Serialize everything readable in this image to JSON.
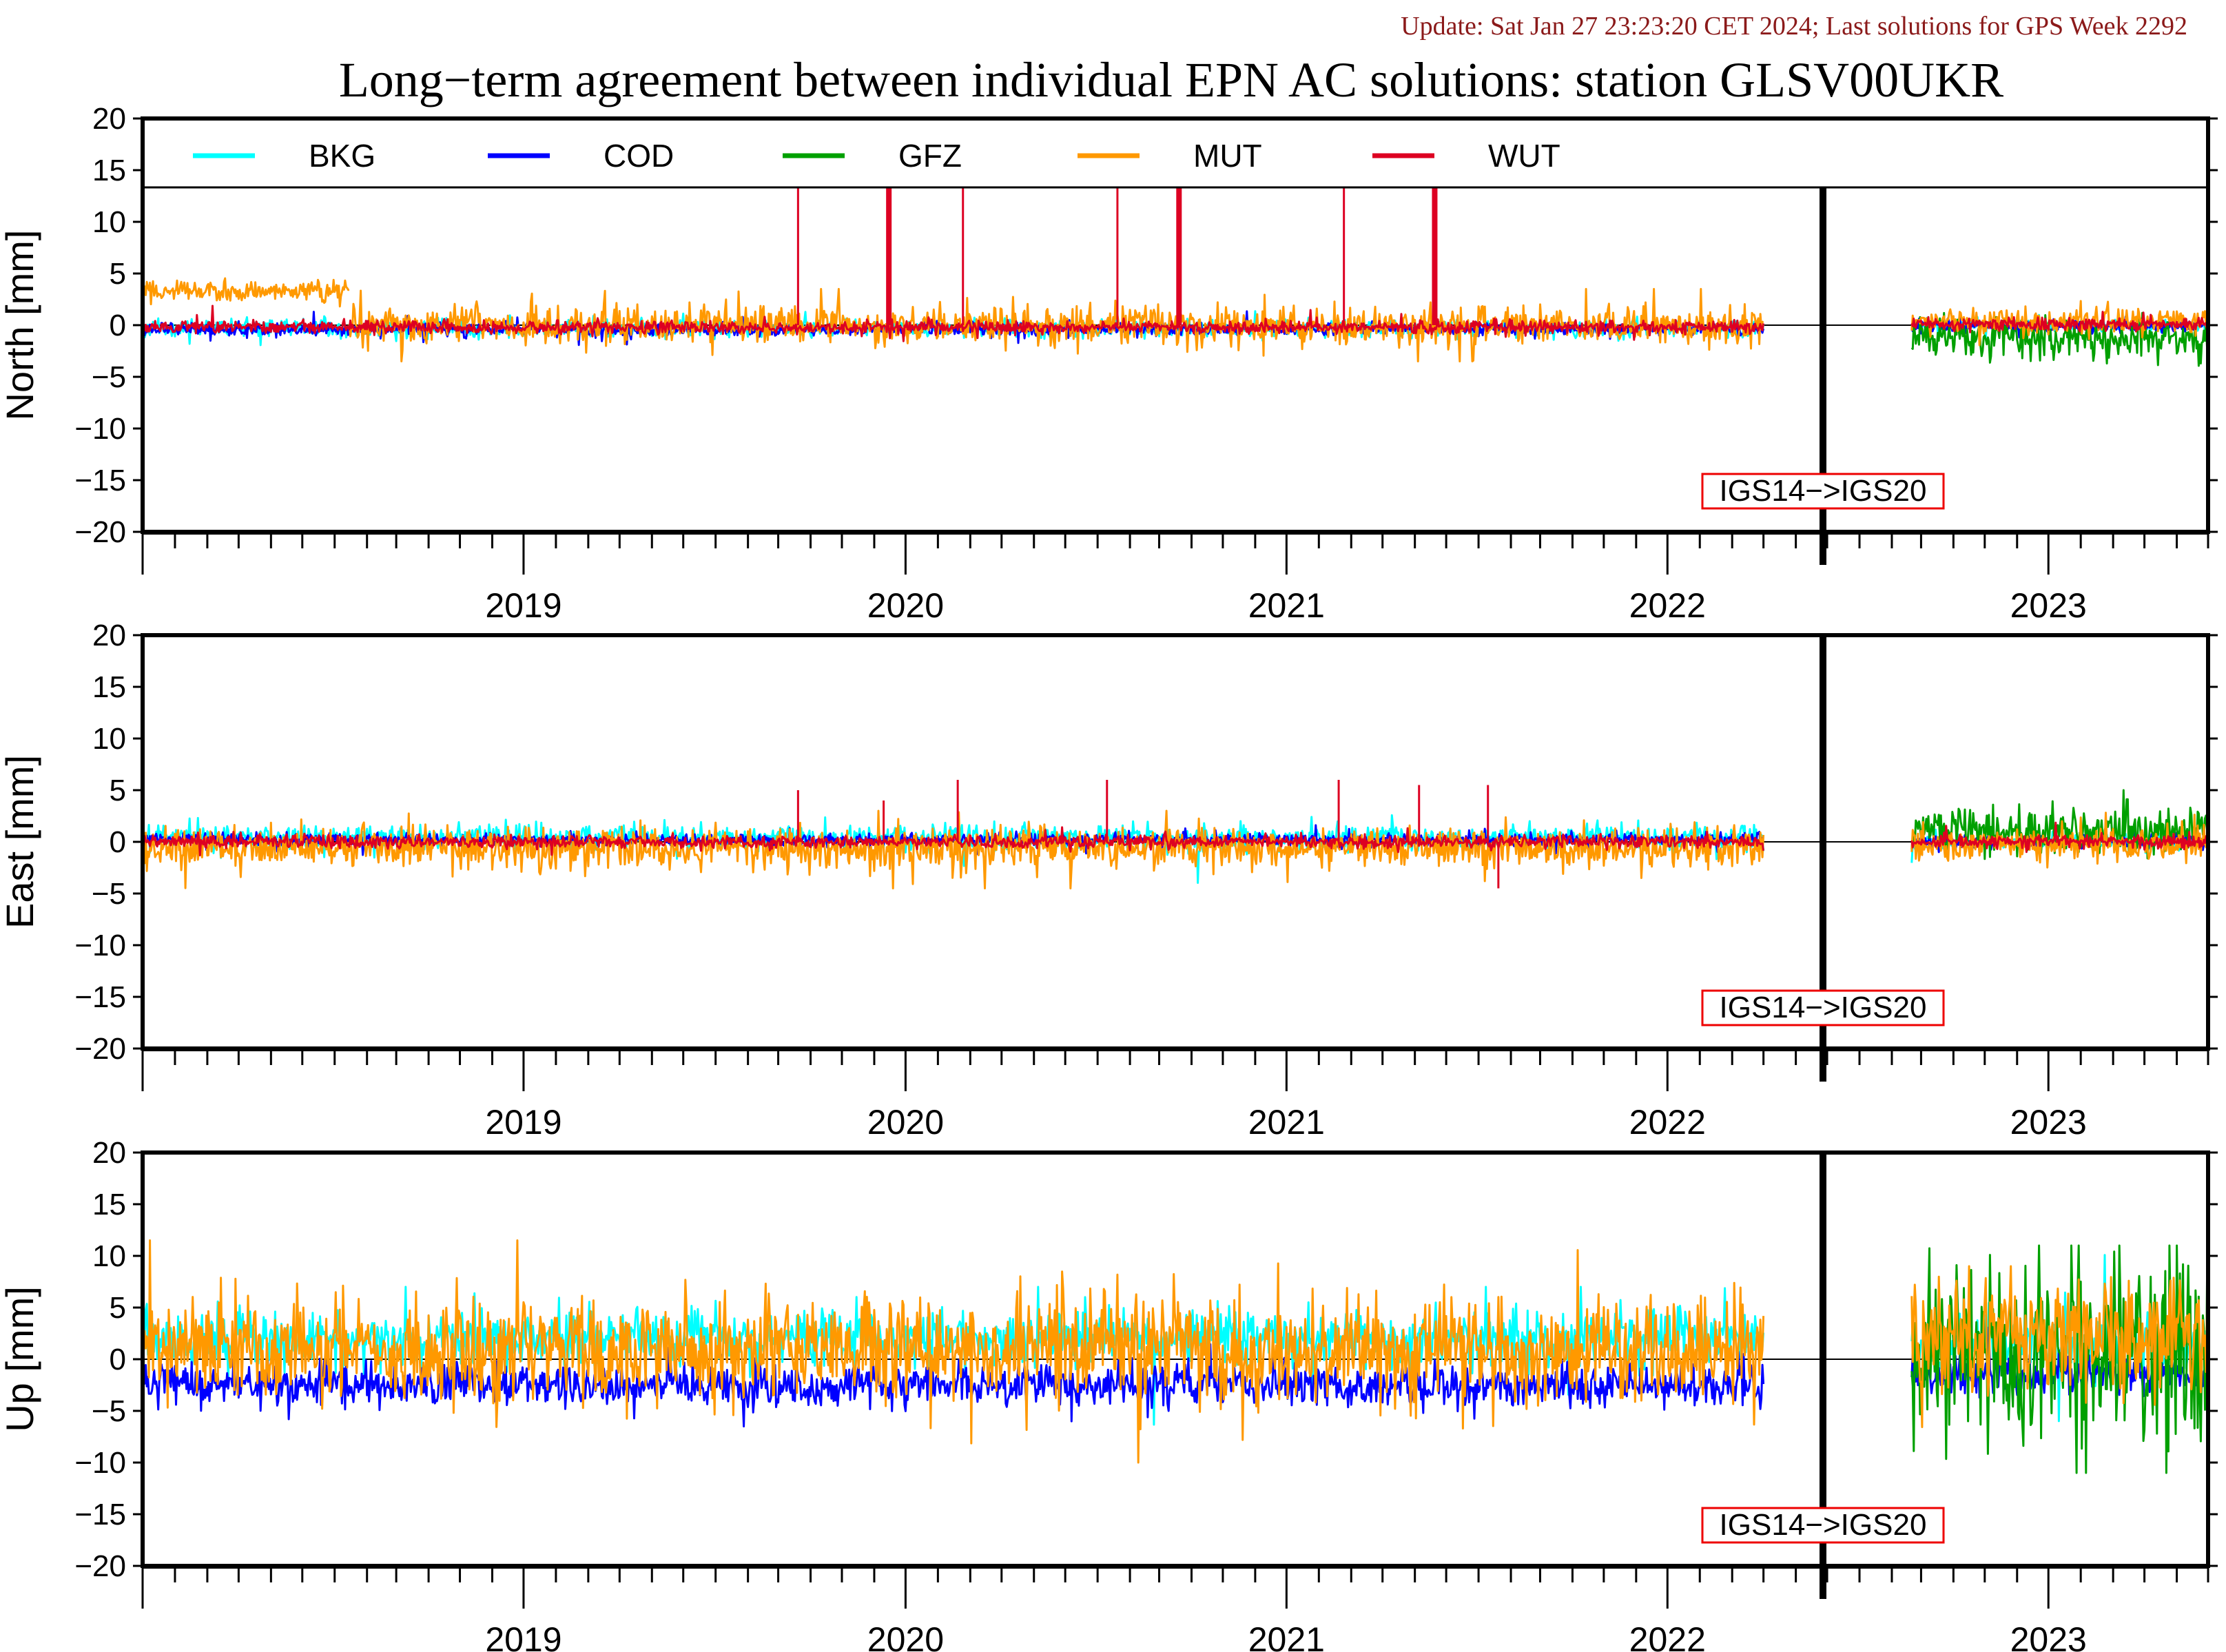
{
  "header": {
    "update_text": "Update: Sat Jan 27 23:23:20 CET 2024; Last solutions for GPS Week 2292",
    "title": "Long−term agreement between individual EPN AC solutions: station GLSV00UKR"
  },
  "colors": {
    "BKG": "#00ffff",
    "COD": "#0000ff",
    "GFZ": "#00a000",
    "MUT": "#ff9900",
    "WUT": "#dd0022",
    "update_text": "#8b1a1a",
    "igs_box_border": "#ee0000"
  },
  "chart_data": {
    "type": "line",
    "title": "Long−term agreement between individual EPN AC solutions: station GLSV00UKR",
    "legend": {
      "placement": "top-inside-first-panel",
      "entries": [
        "BKG",
        "COD",
        "GFZ",
        "MUT",
        "WUT"
      ]
    },
    "x_axis": {
      "type": "time",
      "range": [
        "2018-07",
        "2023-12"
      ],
      "year_labels": [
        "2019",
        "2020",
        "2021",
        "2022",
        "2023"
      ],
      "year_label_centers": [
        "2019-07",
        "2020-07",
        "2021-07",
        "2022-07",
        "2023-07"
      ],
      "major_ticks": [
        "2018-07",
        "2019-07",
        "2020-07",
        "2021-07",
        "2022-07",
        "2023-07"
      ],
      "minor_ticks": "monthly"
    },
    "y_axis": {
      "range": [
        -20,
        20
      ],
      "ticks": [
        "20",
        "15",
        "10",
        "5",
        "0",
        "−5",
        "−10",
        "−15",
        "−20"
      ]
    },
    "reference_frame_change": {
      "label": "IGS14−>IGS20",
      "date": "2022-11-27"
    },
    "data_gap": {
      "from": "2022-10-01",
      "to": "2023-02-20"
    },
    "panels": [
      {
        "ylabel": "North [mm]",
        "series": [
          {
            "name": "BKG",
            "periods": [
              {
                "from": "2018-07-01",
                "to": "2022-10-01",
                "mean": -0.3,
                "noise": 0.4
              },
              {
                "from": "2023-02-20",
                "to": "2023-12-01",
                "mean": 0.0,
                "noise": 0.3
              }
            ]
          },
          {
            "name": "COD",
            "periods": [
              {
                "from": "2018-07-01",
                "to": "2022-10-01",
                "mean": -0.4,
                "noise": 0.3
              },
              {
                "from": "2023-02-20",
                "to": "2023-12-01",
                "mean": -0.1,
                "noise": 0.3
              }
            ]
          },
          {
            "name": "GFZ",
            "periods": [
              {
                "from": "2023-02-20",
                "to": "2023-12-01",
                "mean": -1.2,
                "noise": 1.0,
                "min": -5,
                "max": 2
              }
            ]
          },
          {
            "name": "MUT",
            "periods": [
              {
                "from": "2018-07-01",
                "to": "2019-01-15",
                "mean": 3.3,
                "noise": 0.5
              },
              {
                "from": "2019-01-15",
                "to": "2022-10-01",
                "mean": 0.0,
                "noise": 0.9,
                "min": -3.5,
                "max": 3.5
              },
              {
                "from": "2023-02-20",
                "to": "2023-12-01",
                "mean": 0.4,
                "noise": 0.6
              }
            ]
          },
          {
            "name": "WUT",
            "periods": [
              {
                "from": "2018-07-01",
                "to": "2022-10-01",
                "mean": -0.2,
                "noise": 0.3
              },
              {
                "from": "2023-02-20",
                "to": "2023-12-01",
                "mean": 0.1,
                "noise": 0.3
              }
            ],
            "spikes": [
              {
                "date": "2020-03-20",
                "value": 20,
                "thick": false
              },
              {
                "date": "2020-06-15",
                "value": 20,
                "thick": true
              },
              {
                "date": "2020-08-25",
                "value": 20,
                "thick": false
              },
              {
                "date": "2021-01-20",
                "value": 20,
                "thick": false
              },
              {
                "date": "2021-03-20",
                "value": 20,
                "thick": true
              },
              {
                "date": "2021-08-25",
                "value": 20,
                "thick": false
              },
              {
                "date": "2021-11-20",
                "value": 20,
                "thick": true
              }
            ]
          }
        ]
      },
      {
        "ylabel": "East [mm]",
        "series": [
          {
            "name": "BKG",
            "periods": [
              {
                "from": "2018-07-01",
                "to": "2022-10-01",
                "mean": 0.4,
                "noise": 0.6
              },
              {
                "from": "2023-02-20",
                "to": "2023-12-01",
                "mean": 0.0,
                "noise": 0.3
              }
            ]
          },
          {
            "name": "COD",
            "periods": [
              {
                "from": "2018-07-01",
                "to": "2022-10-01",
                "mean": 0.2,
                "noise": 0.3
              },
              {
                "from": "2023-02-20",
                "to": "2023-12-01",
                "mean": 0.0,
                "noise": 0.3
              }
            ]
          },
          {
            "name": "GFZ",
            "periods": [
              {
                "from": "2023-02-20",
                "to": "2023-12-01",
                "mean": 1.0,
                "noise": 1.2,
                "min": -3.5,
                "max": 5
              }
            ]
          },
          {
            "name": "MUT",
            "periods": [
              {
                "from": "2018-07-01",
                "to": "2022-10-01",
                "mean": -0.6,
                "noise": 1.0,
                "min": -4.5,
                "max": 3
              },
              {
                "from": "2023-02-20",
                "to": "2023-12-01",
                "mean": -0.3,
                "noise": 0.8
              }
            ]
          },
          {
            "name": "WUT",
            "periods": [
              {
                "from": "2018-07-01",
                "to": "2022-10-01",
                "mean": 0.0,
                "noise": 0.3
              },
              {
                "from": "2023-02-20",
                "to": "2023-12-01",
                "mean": 0.0,
                "noise": 0.3
              }
            ],
            "spikes": [
              {
                "date": "2020-03-20",
                "value": 5,
                "thick": false
              },
              {
                "date": "2020-06-10",
                "value": 4,
                "thick": false
              },
              {
                "date": "2020-08-20",
                "value": 6,
                "thick": false
              },
              {
                "date": "2021-01-10",
                "value": 6,
                "thick": false
              },
              {
                "date": "2021-08-20",
                "value": 6,
                "thick": false
              },
              {
                "date": "2021-11-05",
                "value": 5.5,
                "thick": false
              },
              {
                "date": "2022-01-10",
                "value": 5.5,
                "thick": false
              },
              {
                "date": "2022-01-20",
                "value": -4.5,
                "thick": false
              }
            ]
          }
        ]
      },
      {
        "ylabel": "Up [mm]",
        "series": [
          {
            "name": "BKG",
            "periods": [
              {
                "from": "2018-07-01",
                "to": "2022-10-01",
                "mean": 2.0,
                "noise": 1.3,
                "min": -6.5,
                "max": 7
              },
              {
                "from": "2023-02-20",
                "to": "2023-12-01",
                "mean": 1.5,
                "noise": 1.2
              }
            ]
          },
          {
            "name": "COD",
            "periods": [
              {
                "from": "2018-07-01",
                "to": "2022-10-01",
                "mean": -2.5,
                "noise": 1.0,
                "min": -6.5,
                "max": 4
              },
              {
                "from": "2023-02-20",
                "to": "2023-12-01",
                "mean": -1.5,
                "noise": 1.0
              }
            ]
          },
          {
            "name": "GFZ",
            "periods": [
              {
                "from": "2023-02-20",
                "to": "2023-12-01",
                "mean": 0.5,
                "noise": 4.5,
                "min": -11,
                "max": 11
              }
            ]
          },
          {
            "name": "MUT",
            "periods": [
              {
                "from": "2018-07-01",
                "to": "2022-10-01",
                "mean": 1.0,
                "noise": 2.5,
                "min": -10,
                "max": 11.5
              },
              {
                "from": "2023-02-20",
                "to": "2023-12-01",
                "mean": 2.0,
                "noise": 2.8,
                "min": -10,
                "max": 9
              }
            ]
          }
        ]
      }
    ]
  }
}
